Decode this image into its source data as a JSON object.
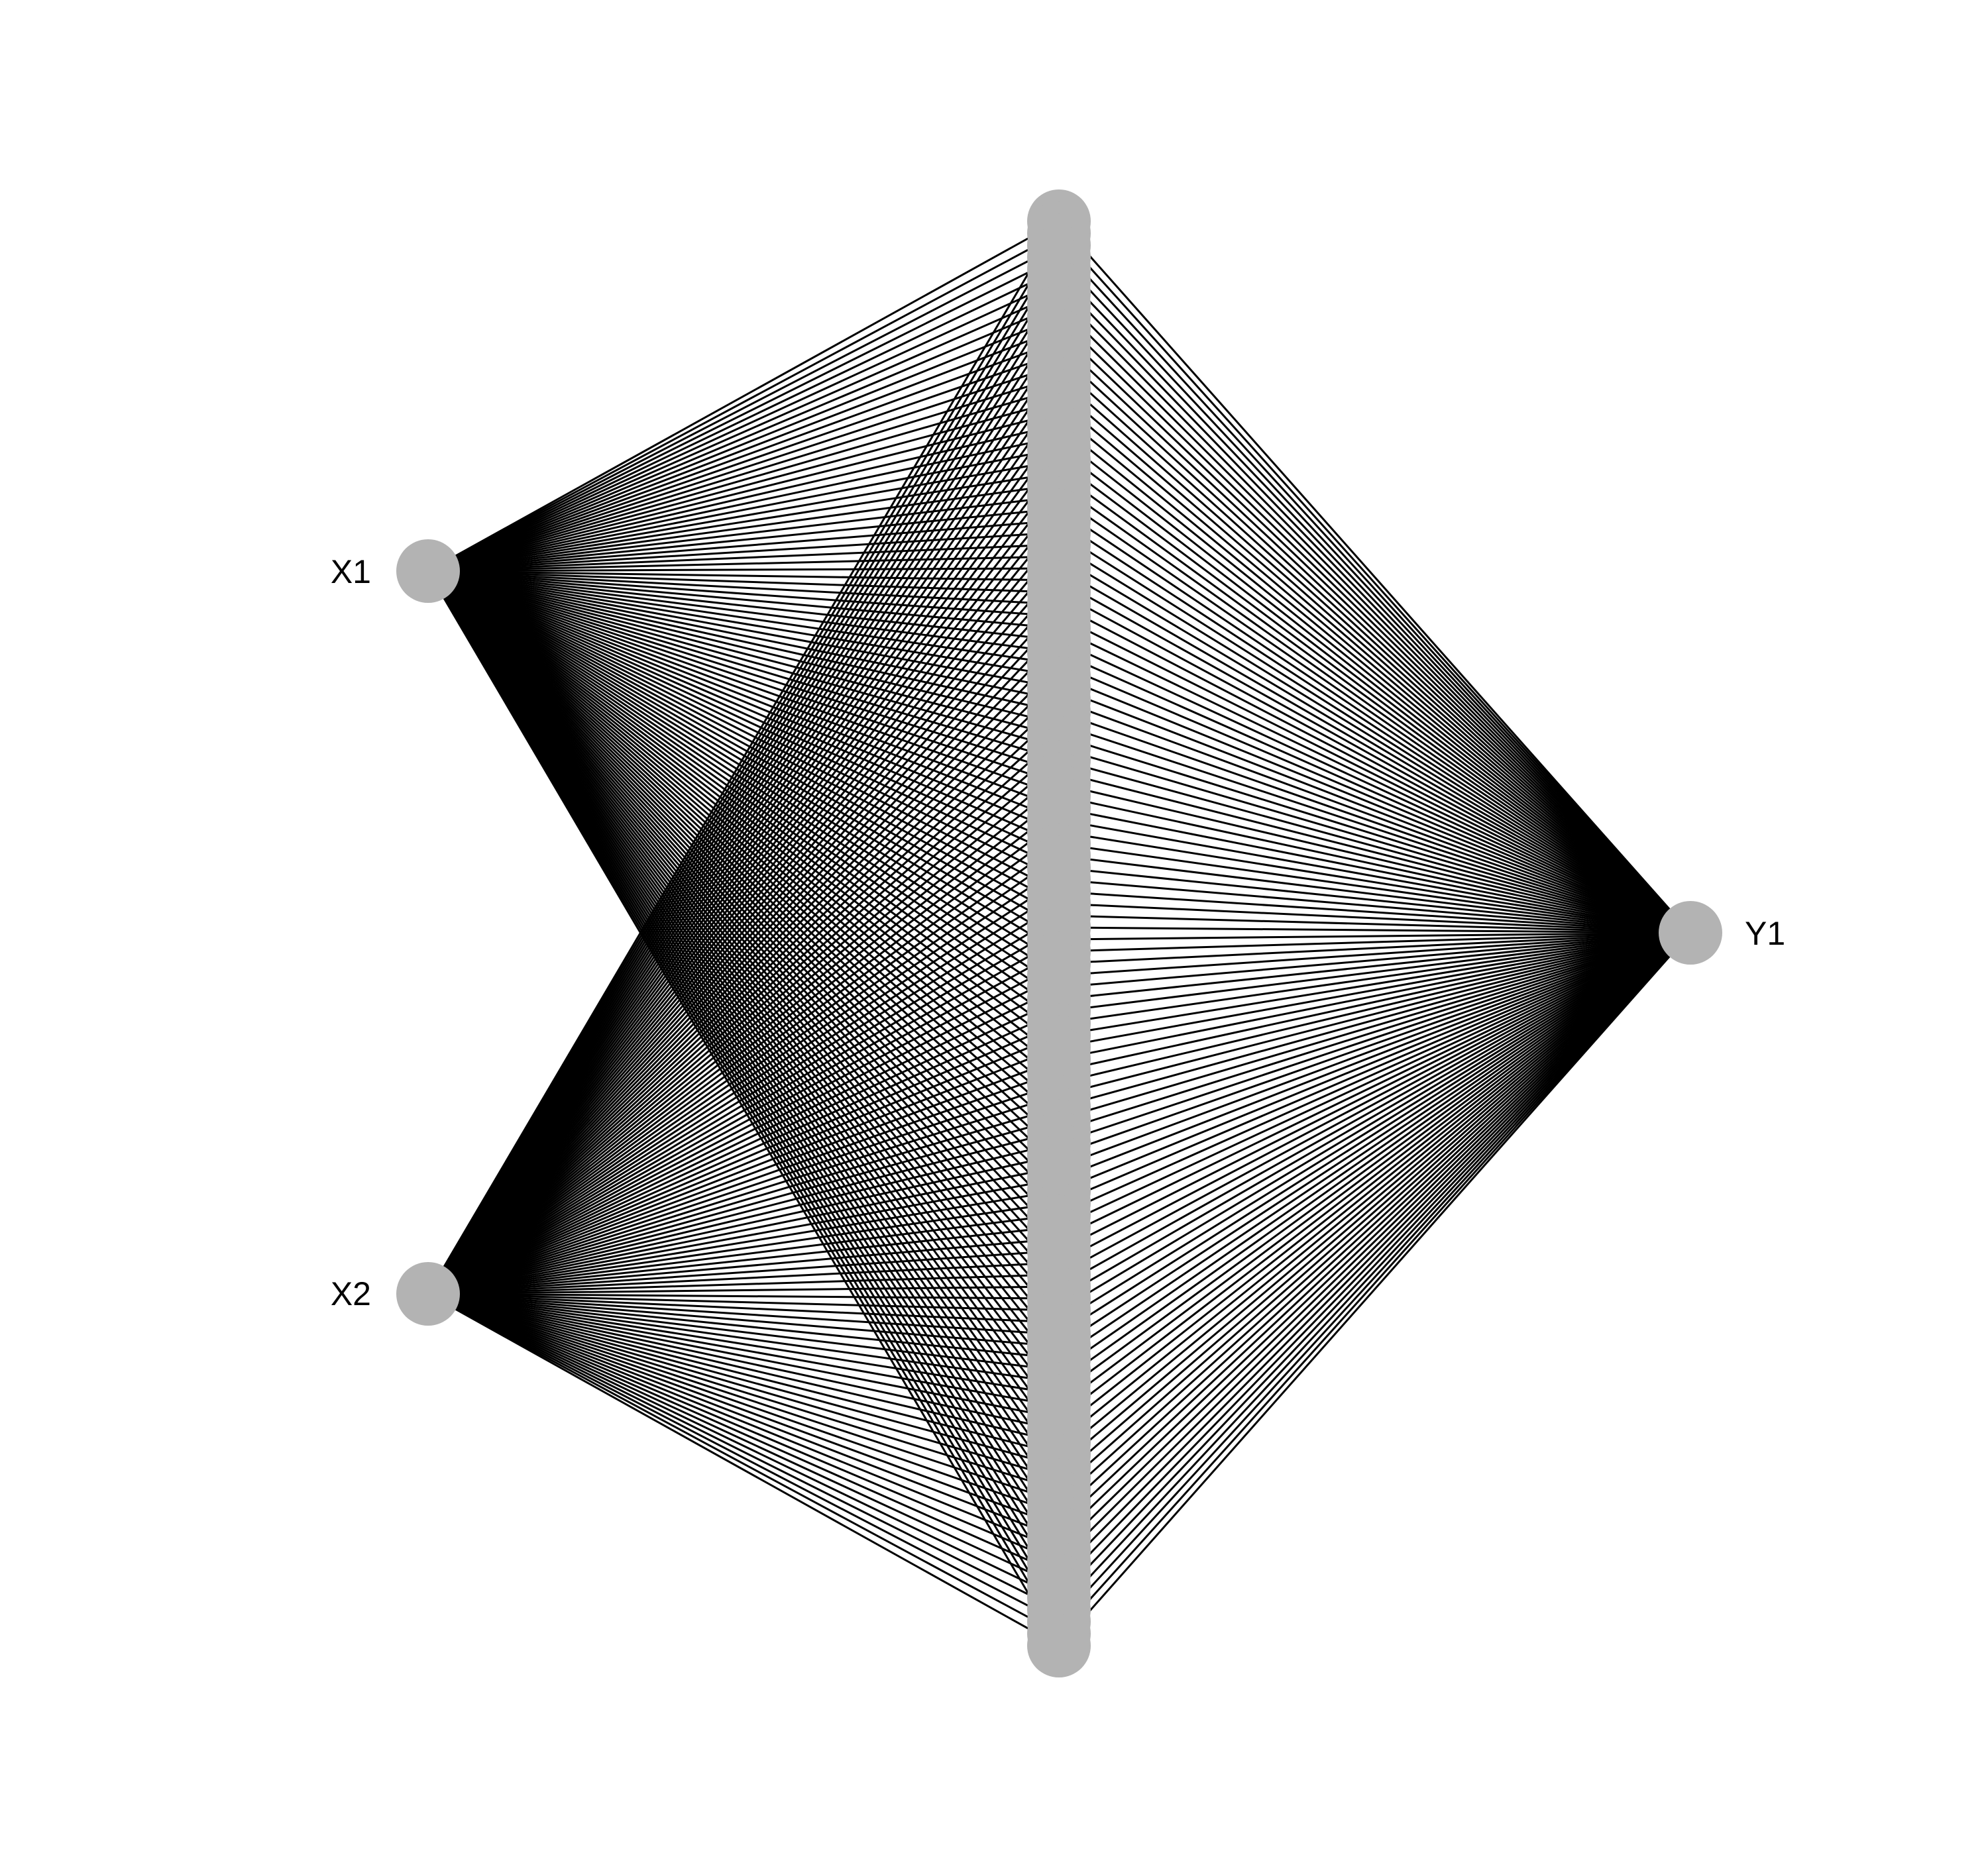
{
  "diagram": {
    "type": "neural-network",
    "input_nodes": [
      {
        "id": "x1",
        "label": "X1"
      },
      {
        "id": "x2",
        "label": "X2"
      }
    ],
    "hidden_layer": {
      "node_count": 120
    },
    "output_nodes": [
      {
        "id": "y1",
        "label": "Y1"
      }
    ],
    "colors": {
      "background": "#ffffff",
      "node": "#b3b3b3",
      "edge": "#000000",
      "label": "#000000"
    }
  }
}
